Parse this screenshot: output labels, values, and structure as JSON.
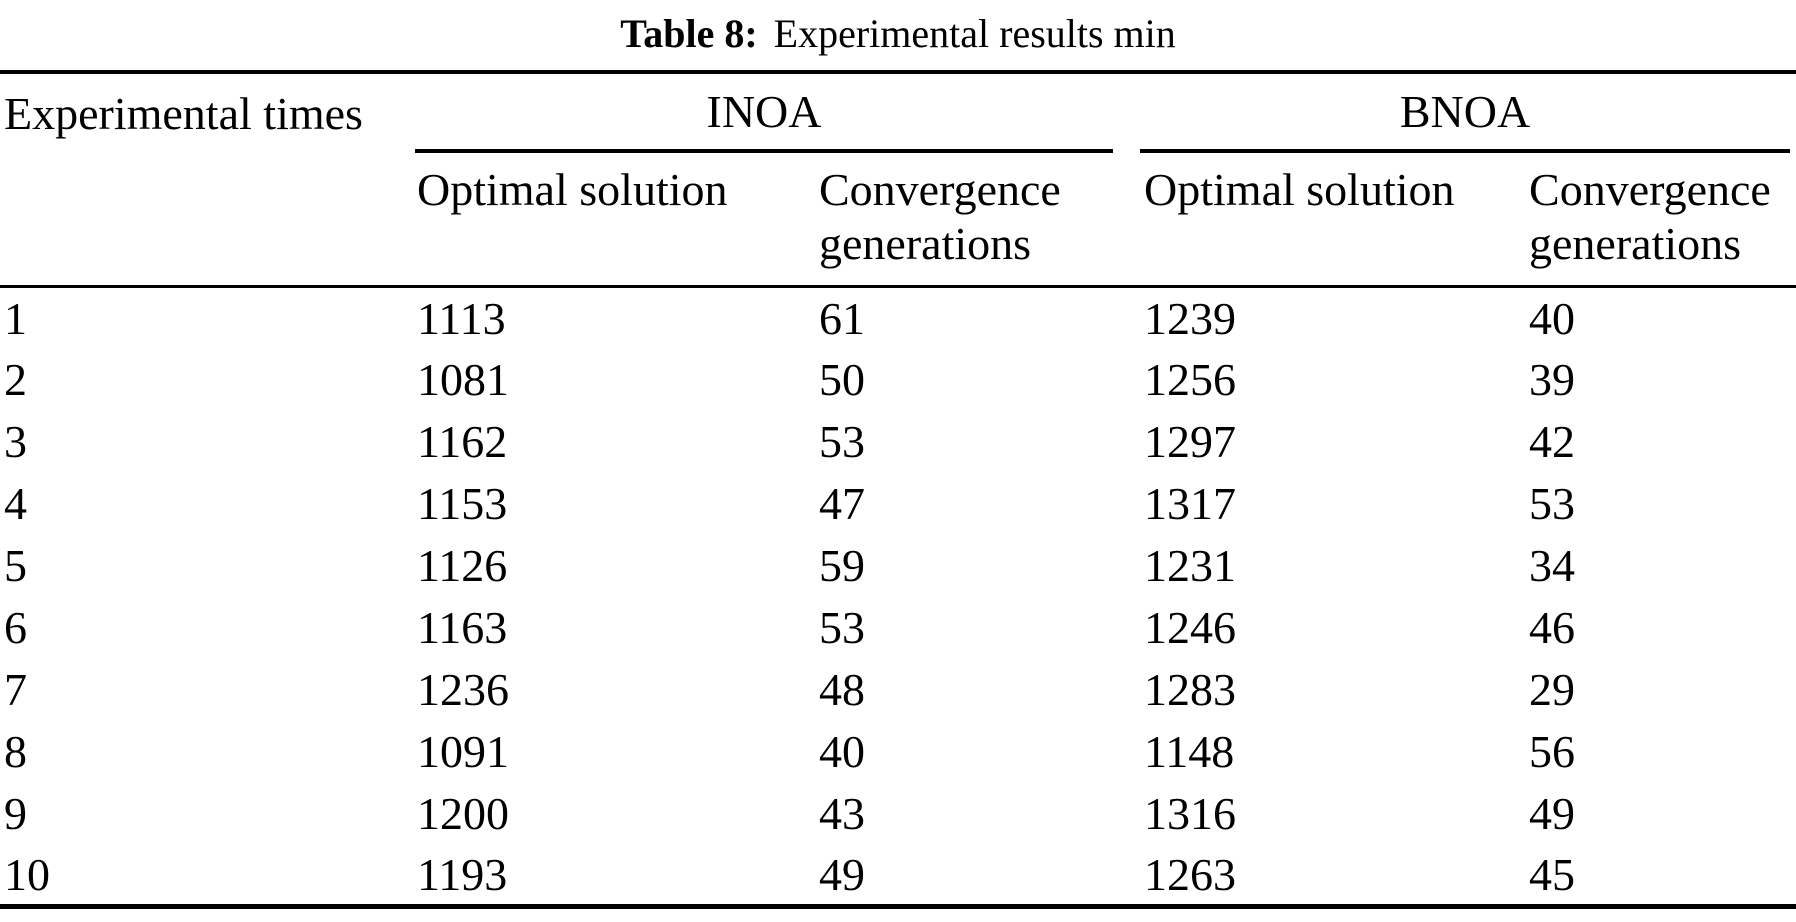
{
  "colors": {
    "text": "#000000",
    "background": "#ffffff",
    "rule": "#000000"
  },
  "caption": {
    "label": "Table 8:",
    "text": "Experimental results min"
  },
  "table": {
    "row_header": "Experimental times",
    "groups": [
      {
        "name": "INOA",
        "subcolumns": [
          "Optimal solution",
          "Convergence generations"
        ]
      },
      {
        "name": "BNOA",
        "subcolumns": [
          "Optimal solution",
          "Convergence generations"
        ]
      }
    ],
    "rows": [
      {
        "time": "1",
        "inoa_optimal": "1113",
        "inoa_convergence": "61",
        "bnoa_optimal": "1239",
        "bnoa_convergence": "40"
      },
      {
        "time": "2",
        "inoa_optimal": "1081",
        "inoa_convergence": "50",
        "bnoa_optimal": "1256",
        "bnoa_convergence": "39"
      },
      {
        "time": "3",
        "inoa_optimal": "1162",
        "inoa_convergence": "53",
        "bnoa_optimal": "1297",
        "bnoa_convergence": "42"
      },
      {
        "time": "4",
        "inoa_optimal": "1153",
        "inoa_convergence": "47",
        "bnoa_optimal": "1317",
        "bnoa_convergence": "53"
      },
      {
        "time": "5",
        "inoa_optimal": "1126",
        "inoa_convergence": "59",
        "bnoa_optimal": "1231",
        "bnoa_convergence": "34"
      },
      {
        "time": "6",
        "inoa_optimal": "1163",
        "inoa_convergence": "53",
        "bnoa_optimal": "1246",
        "bnoa_convergence": "46"
      },
      {
        "time": "7",
        "inoa_optimal": "1236",
        "inoa_convergence": "48",
        "bnoa_optimal": "1283",
        "bnoa_convergence": "29"
      },
      {
        "time": "8",
        "inoa_optimal": "1091",
        "inoa_convergence": "40",
        "bnoa_optimal": "1148",
        "bnoa_convergence": "56"
      },
      {
        "time": "9",
        "inoa_optimal": "1200",
        "inoa_convergence": "43",
        "bnoa_optimal": "1316",
        "bnoa_convergence": "49"
      },
      {
        "time": "10",
        "inoa_optimal": "1193",
        "inoa_convergence": "49",
        "bnoa_optimal": "1263",
        "bnoa_convergence": "45"
      }
    ]
  },
  "chart_data": {
    "type": "table",
    "title": "Table 8: Experimental results min",
    "columns": [
      "Experimental times",
      "INOA Optimal solution",
      "INOA Convergence generations",
      "BNOA Optimal solution",
      "BNOA Convergence generations"
    ],
    "rows": [
      [
        1,
        1113,
        61,
        1239,
        40
      ],
      [
        2,
        1081,
        50,
        1256,
        39
      ],
      [
        3,
        1162,
        53,
        1297,
        42
      ],
      [
        4,
        1153,
        47,
        1317,
        53
      ],
      [
        5,
        1126,
        59,
        1231,
        34
      ],
      [
        6,
        1163,
        53,
        1246,
        46
      ],
      [
        7,
        1236,
        48,
        1283,
        29
      ],
      [
        8,
        1091,
        40,
        1148,
        56
      ],
      [
        9,
        1200,
        43,
        1316,
        49
      ],
      [
        10,
        1193,
        49,
        1263,
        45
      ]
    ]
  }
}
